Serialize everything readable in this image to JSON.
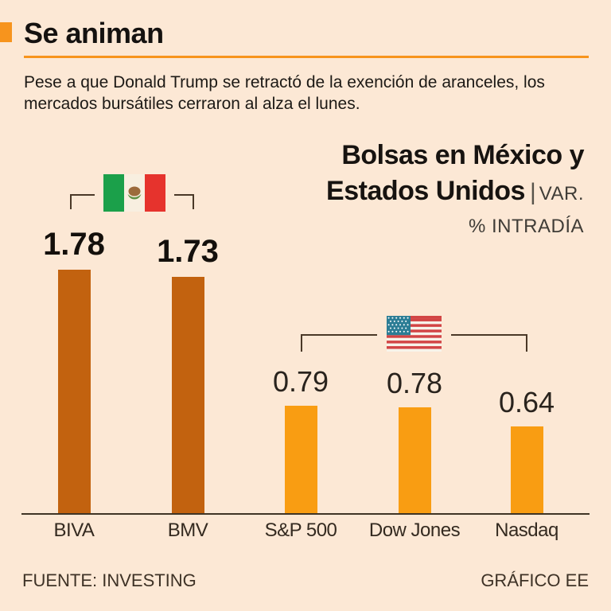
{
  "colors": {
    "background": "#fce8d5",
    "accent": "#f7941d",
    "mexico_bars": "#c2620f",
    "us_bars": "#f99d12",
    "axis": "#3f3425",
    "text": "#1c1915"
  },
  "header": {
    "title": "Se animan",
    "intro": "Pese a que Donald Trump se retractó de la exención de aranceles, los mercados bursátiles cerraron al alza el lunes."
  },
  "chart": {
    "title_line1": "Bolsas en México y",
    "title_line2": "Estados Unidos",
    "title_separator": "|",
    "var_label": "VAR.",
    "unit_label": "% INTRADÍA"
  },
  "chart_data": {
    "type": "bar",
    "title": "Bolsas en México y Estados Unidos",
    "ylabel": "VAR. % INTRADÍA",
    "categories": [
      "BIVA",
      "BMV",
      "S&P 500",
      "Dow Jones",
      "Nasdaq"
    ],
    "values": [
      1.78,
      1.73,
      0.79,
      0.78,
      0.64
    ],
    "pixels_per_unit": 173,
    "ylim": [
      0,
      2
    ],
    "grid": false,
    "legend": "country flags with brackets over grouped bars",
    "groups": [
      {
        "name": "México",
        "members": [
          "BIVA",
          "BMV"
        ],
        "color": "#c2620f",
        "flag_icon": "mexico-flag-icon"
      },
      {
        "name": "Estados Unidos",
        "members": [
          "S&P 500",
          "Dow Jones",
          "Nasdaq"
        ],
        "color": "#f99d12",
        "flag_icon": "usa-flag-icon"
      }
    ]
  },
  "footer": {
    "source": "FUENTE: INVESTING",
    "credit": "GRÁFICO EE"
  }
}
